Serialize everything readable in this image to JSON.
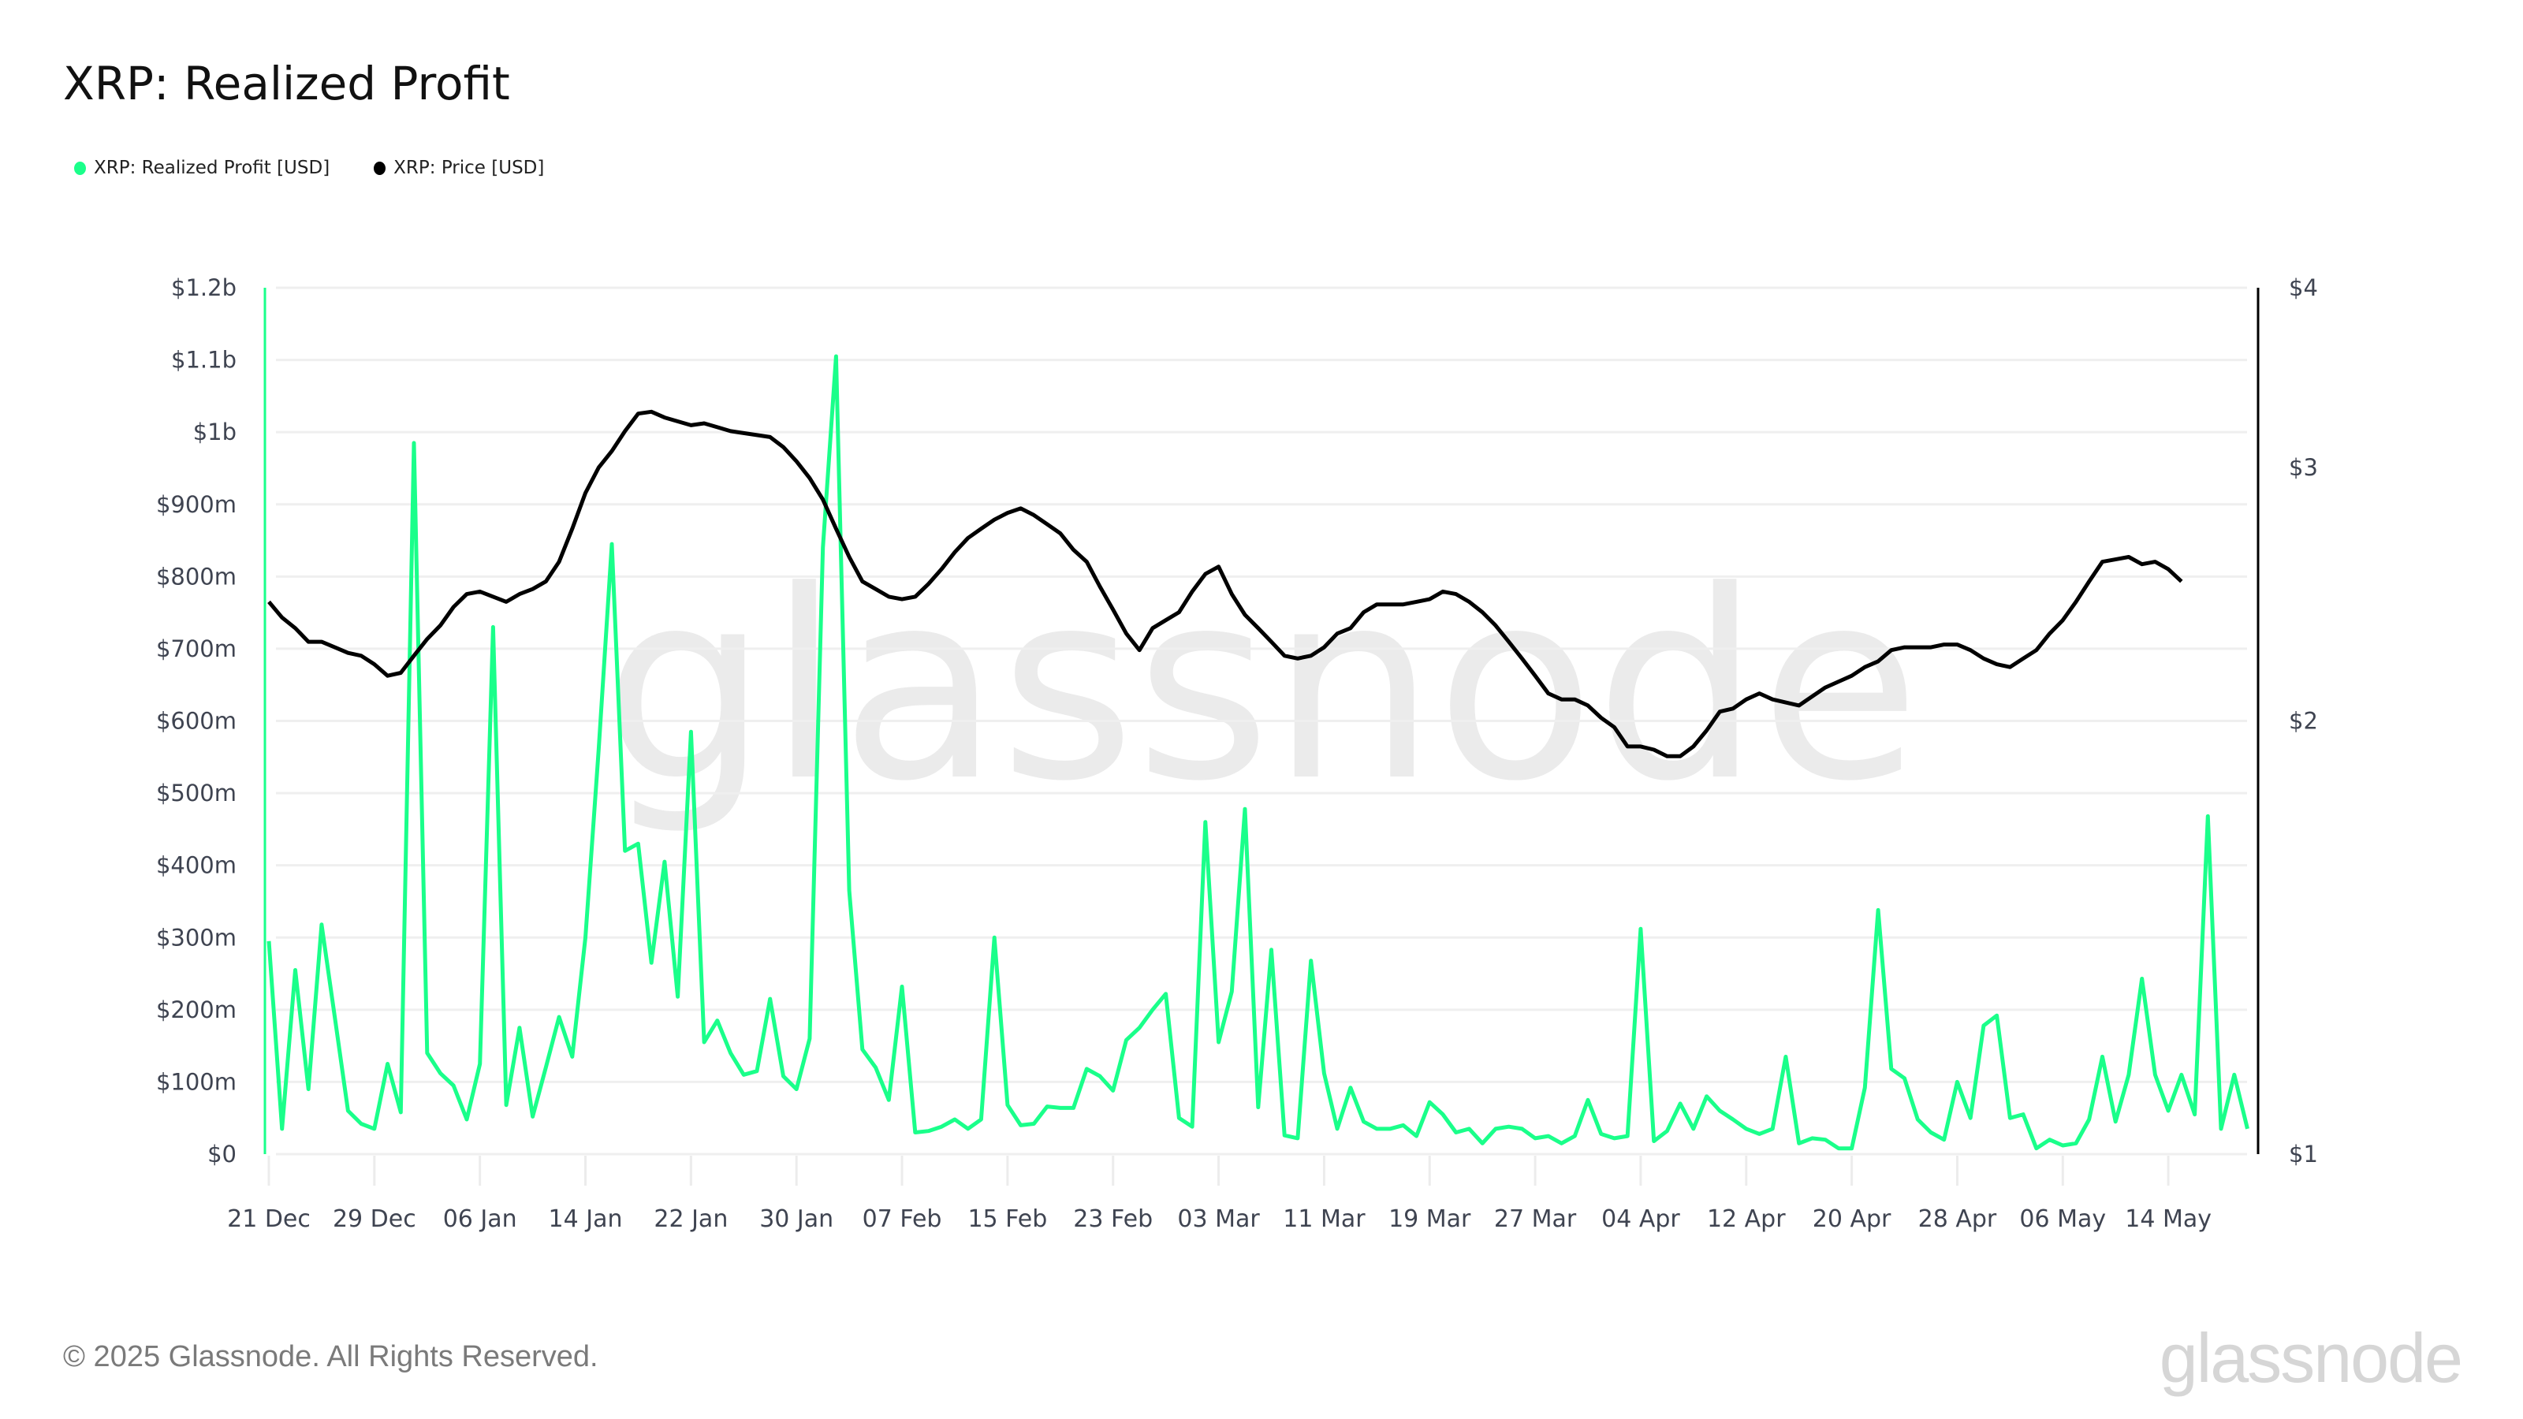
{
  "header": {
    "title": "XRP: Realized Profit"
  },
  "legend": [
    {
      "label": "XRP: Realized Profit [USD]",
      "color": "#1aff8a"
    },
    {
      "label": "XRP: Price [USD]",
      "color": "#000000"
    }
  ],
  "footer": {
    "copyright": "© 2025 Glassnode. All Rights Reserved.",
    "brand": "glassnode",
    "watermark": "glassnode"
  },
  "chart_data": {
    "type": "line",
    "title": "XRP: Realized Profit",
    "xlabel": "",
    "ylabel": "Realized Profit [USD]",
    "y2label": "Price [USD]",
    "ylim": [
      0,
      1200000000
    ],
    "y2lim": [
      1,
      4
    ],
    "y2scale": "log",
    "grid": true,
    "legend_position": "top-left",
    "x_start": "2024-12-21",
    "x_end": "2025-05-20",
    "x_ticks": [
      "21 Dec",
      "29 Dec",
      "06 Jan",
      "14 Jan",
      "22 Jan",
      "30 Jan",
      "07 Feb",
      "15 Feb",
      "23 Feb",
      "03 Mar",
      "11 Mar",
      "19 Mar",
      "27 Mar",
      "04 Apr",
      "12 Apr",
      "20 Apr",
      "28 Apr",
      "06 May",
      "14 May"
    ],
    "y_ticks": [
      "$0",
      "$100m",
      "$200m",
      "$300m",
      "$400m",
      "$500m",
      "$600m",
      "$700m",
      "$800m",
      "$900m",
      "$1b",
      "$1.1b",
      "$1.2b"
    ],
    "y2_ticks": [
      "$1",
      "$2",
      "$3",
      "$4"
    ],
    "series": [
      {
        "name": "XRP: Realized Profit [USD]",
        "unit": "USD millions",
        "color": "#1aff8a",
        "values": [
          295,
          35,
          255,
          90,
          318,
          190,
          60,
          42,
          35,
          125,
          58,
          985,
          140,
          112,
          95,
          48,
          125,
          730,
          68,
          175,
          52,
          120,
          190,
          135,
          300,
          560,
          845,
          420,
          430,
          265,
          405,
          218,
          585,
          155,
          185,
          140,
          110,
          115,
          215,
          108,
          90,
          160,
          840,
          1105,
          365,
          145,
          120,
          75,
          232,
          30,
          32,
          38,
          48,
          35,
          48,
          300,
          68,
          40,
          42,
          66,
          64,
          64,
          118,
          108,
          88,
          158,
          175,
          200,
          222,
          50,
          38,
          460,
          155,
          225,
          478,
          65,
          283,
          26,
          22,
          268,
          112,
          35,
          92,
          45,
          35,
          35,
          40,
          25,
          72,
          55,
          30,
          35,
          15,
          35,
          38,
          35,
          22,
          25,
          15,
          25,
          75,
          28,
          22,
          25,
          312,
          18,
          32,
          70,
          35,
          80,
          60,
          48,
          35,
          28,
          35,
          135,
          15,
          22,
          20,
          8,
          8,
          92,
          338,
          118,
          105,
          48,
          30,
          20,
          100,
          50,
          178,
          192,
          50,
          55,
          8,
          20,
          12,
          15,
          48,
          135,
          45,
          110,
          243,
          110,
          60,
          110,
          55,
          468,
          35,
          110,
          35
        ]
      },
      {
        "name": "XRP: Price [USD]",
        "unit": "USD",
        "color": "#000000",
        "values": [
          2.42,
          2.36,
          2.32,
          2.27,
          2.27,
          2.25,
          2.23,
          2.22,
          2.19,
          2.15,
          2.16,
          2.22,
          2.28,
          2.33,
          2.4,
          2.45,
          2.46,
          2.44,
          2.42,
          2.45,
          2.47,
          2.5,
          2.58,
          2.72,
          2.88,
          3.0,
          3.08,
          3.18,
          3.27,
          3.28,
          3.25,
          3.23,
          3.21,
          3.22,
          3.2,
          3.18,
          3.17,
          3.16,
          3.15,
          3.1,
          3.03,
          2.95,
          2.85,
          2.72,
          2.6,
          2.5,
          2.47,
          2.44,
          2.43,
          2.44,
          2.49,
          2.55,
          2.62,
          2.68,
          2.72,
          2.76,
          2.79,
          2.81,
          2.78,
          2.74,
          2.7,
          2.63,
          2.58,
          2.48,
          2.39,
          2.3,
          2.24,
          2.32,
          2.35,
          2.38,
          2.46,
          2.53,
          2.56,
          2.45,
          2.37,
          2.32,
          2.27,
          2.22,
          2.21,
          2.22,
          2.25,
          2.3,
          2.32,
          2.38,
          2.41,
          2.41,
          2.41,
          2.42,
          2.43,
          2.46,
          2.45,
          2.42,
          2.38,
          2.33,
          2.27,
          2.21,
          2.15,
          2.09,
          2.07,
          2.07,
          2.05,
          2.01,
          1.98,
          1.92,
          1.92,
          1.91,
          1.89,
          1.89,
          1.92,
          1.97,
          2.03,
          2.04,
          2.07,
          2.09,
          2.07,
          2.06,
          2.05,
          2.08,
          2.11,
          2.13,
          2.15,
          2.18,
          2.2,
          2.24,
          2.25,
          2.25,
          2.25,
          2.26,
          2.26,
          2.24,
          2.21,
          2.19,
          2.18,
          2.21,
          2.24,
          2.3,
          2.35,
          2.42,
          2.5,
          2.58,
          2.59,
          2.6,
          2.57,
          2.58,
          2.55,
          2.5
        ]
      }
    ]
  }
}
